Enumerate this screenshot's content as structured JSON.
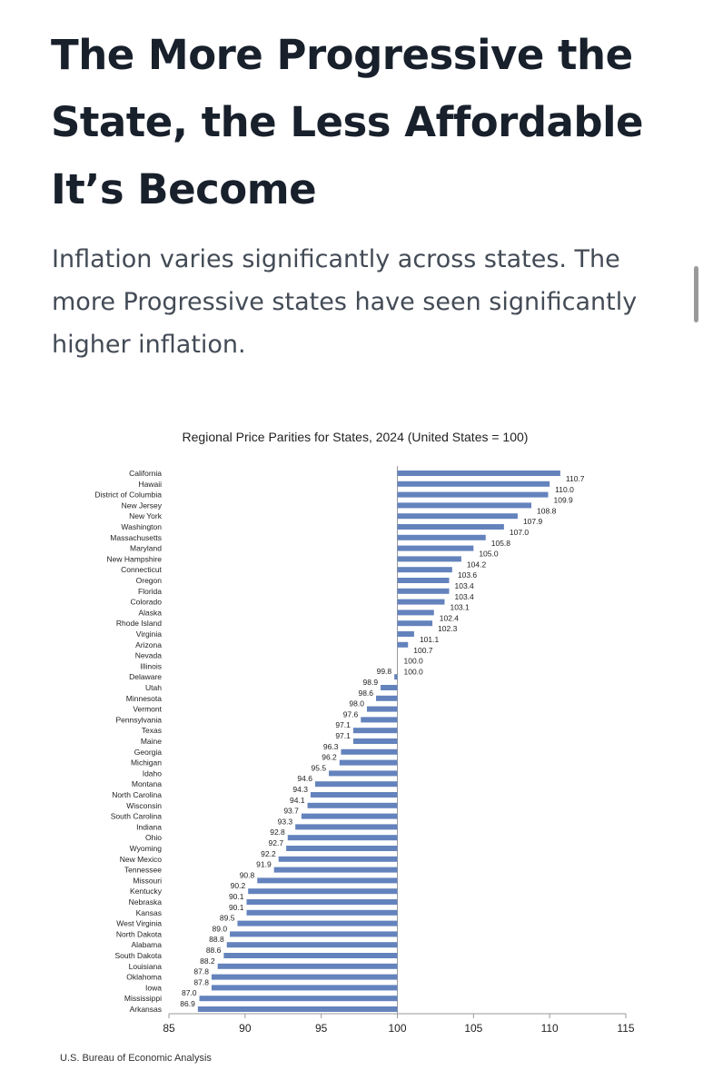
{
  "article": {
    "headline": "The More Progressive the State, the Less Affordable It’s Become",
    "subhead": "Inflation varies significantly across states. The more Progressive states have seen significantly higher inflation."
  },
  "chart_data": {
    "type": "bar",
    "orientation": "horizontal",
    "title": "Regional Price Parities for States, 2024 (United States = 100)",
    "source": "U.S. Bureau of Economic Analysis",
    "baseline": 100,
    "xlim": [
      85,
      115
    ],
    "xticks": [
      85,
      90,
      95,
      100,
      105,
      110,
      115
    ],
    "bar_color": "#6483bd",
    "categories": [
      "California",
      "Hawaii",
      "District of Columbia",
      "New Jersey",
      "New York",
      "Washington",
      "Massachusetts",
      "Maryland",
      "New Hampshire",
      "Connecticut",
      "Oregon",
      "Florida",
      "Colorado",
      "Alaska",
      "Rhode Island",
      "Virginia",
      "Arizona",
      "Nevada",
      "Illinois",
      "Delaware",
      "Utah",
      "Minnesota",
      "Vermont",
      "Pennsylvania",
      "Texas",
      "Maine",
      "Georgia",
      "Michigan",
      "Idaho",
      "Montana",
      "North Carolina",
      "Wisconsin",
      "South Carolina",
      "Indiana",
      "Ohio",
      "Wyoming",
      "New Mexico",
      "Tennessee",
      "Missouri",
      "Kentucky",
      "Nebraska",
      "Kansas",
      "West Virginia",
      "North Dakota",
      "Alabama",
      "South Dakota",
      "Louisiana",
      "Oklahoma",
      "Iowa",
      "Mississippi",
      "Arkansas"
    ],
    "values": [
      110.7,
      110.0,
      109.9,
      108.8,
      107.9,
      107.0,
      105.8,
      105.0,
      104.2,
      103.6,
      103.4,
      103.4,
      103.1,
      102.4,
      102.3,
      101.1,
      100.7,
      100.0,
      100.0,
      99.8,
      98.9,
      98.6,
      98.0,
      97.6,
      97.1,
      97.1,
      96.3,
      96.2,
      95.5,
      94.6,
      94.3,
      94.1,
      93.7,
      93.3,
      92.8,
      92.7,
      92.2,
      91.9,
      90.8,
      90.2,
      90.1,
      90.1,
      89.5,
      89.0,
      88.8,
      88.6,
      88.2,
      87.8,
      87.8,
      87.0,
      86.9
    ],
    "labels": [
      "110.7",
      "110.0",
      "109.9",
      "108.8",
      "107.9",
      "107.0",
      "105.8",
      "105.0",
      "104.2",
      "103.6",
      "103.4",
      "103.4",
      "103.1",
      "102.4",
      "102.3",
      "101.1",
      "100.7",
      "100.0",
      "100.0",
      "99.8",
      "98.9",
      "98.6",
      "98.0",
      "97.6",
      "97.1",
      "97.1",
      "96.3",
      "96.2",
      "95.5",
      "94.6",
      "94.3",
      "94.1",
      "93.7",
      "93.3",
      "92.8",
      "92.7",
      "92.2",
      "91.9",
      "90.8",
      "90.2",
      "90.1",
      "90.1",
      "89.5",
      "89.0",
      "88.8",
      "88.6",
      "88.2",
      "87.8",
      "87.8",
      "87.0",
      "86.9"
    ]
  }
}
